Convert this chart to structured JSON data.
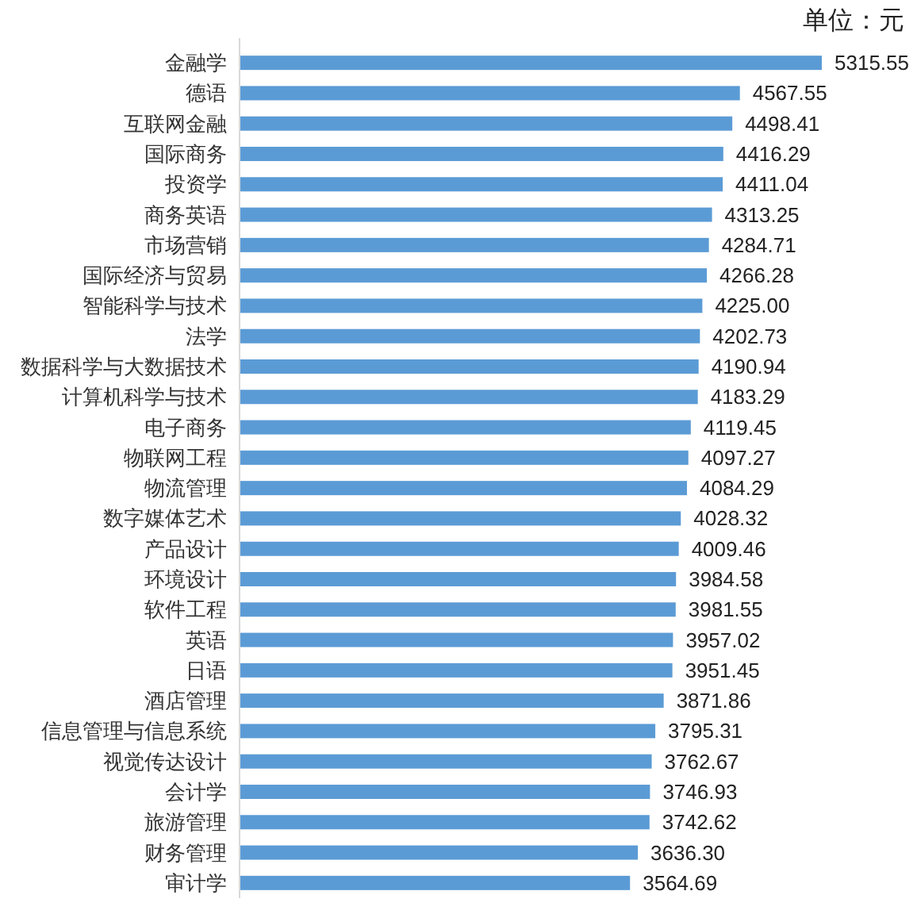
{
  "chart_data": {
    "type": "bar",
    "orientation": "horizontal",
    "categories": [
      "金融学",
      "德语",
      "互联网金融",
      "国际商务",
      "投资学",
      "商务英语",
      "市场营销",
      "国际经济与贸易",
      "智能科学与技术",
      "法学",
      "数据科学与大数据技术",
      "计算机科学与技术",
      "电子商务",
      "物联网工程",
      "物流管理",
      "数字媒体艺术",
      "产品设计",
      "环境设计",
      "软件工程",
      "英语",
      "日语",
      "酒店管理",
      "信息管理与信息系统",
      "视觉传达设计",
      "会计学",
      "旅游管理",
      "财务管理",
      "审计学"
    ],
    "values": [
      5315.55,
      4567.55,
      4498.41,
      4416.29,
      4411.04,
      4313.25,
      4284.71,
      4266.28,
      4225.0,
      4202.73,
      4190.94,
      4183.29,
      4119.45,
      4097.27,
      4084.29,
      4028.32,
      4009.46,
      3984.58,
      3981.55,
      3957.02,
      3951.45,
      3871.86,
      3795.31,
      3762.67,
      3746.93,
      3742.62,
      3636.3,
      3564.69
    ],
    "value_labels": [
      "5315.55",
      "4567.55",
      "4498.41",
      "4416.29",
      "4411.04",
      "4313.25",
      "4284.71",
      "4266.28",
      "4225.00",
      "4202.73",
      "4190.94",
      "4183.29",
      "4119.45",
      "4097.27",
      "4084.29",
      "4028.32",
      "4009.46",
      "3984.58",
      "3981.55",
      "3957.02",
      "3951.45",
      "3871.86",
      "3795.31",
      "3762.67",
      "3746.93",
      "3742.62",
      "3636.30",
      "3564.69"
    ],
    "color": "#5b9bd5",
    "annotations": [
      "单位：元"
    ]
  }
}
